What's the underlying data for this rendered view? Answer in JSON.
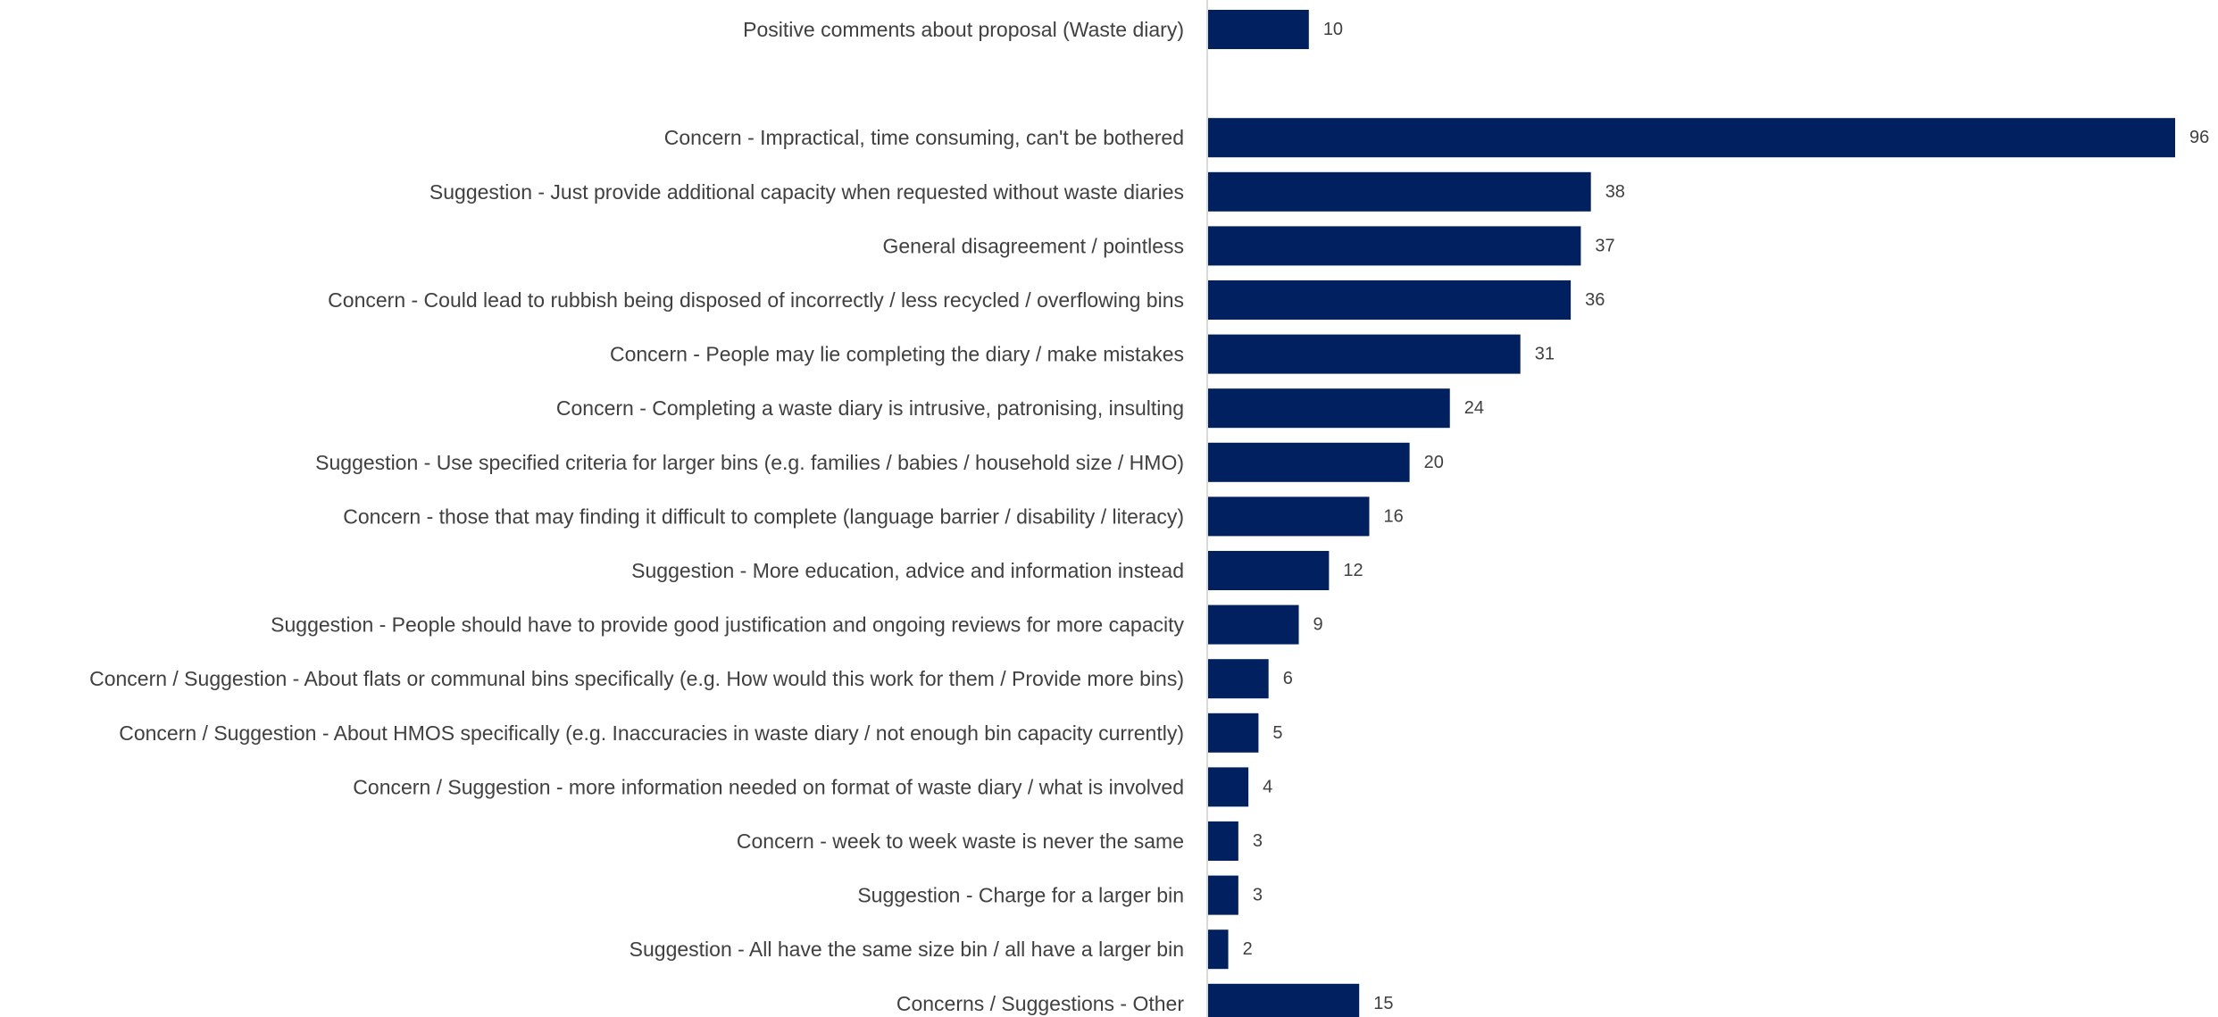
{
  "chart_data": {
    "type": "bar",
    "orientation": "horizontal",
    "categories": [
      "Positive comments about proposal (Waste diary)",
      "",
      "Concern - Impractical, time consuming, can't be bothered",
      "Suggestion - Just provide additional capacity when requested without waste diaries",
      "General disagreement / pointless",
      "Concern - Could lead to rubbish being disposed of incorrectly / less recycled / overflowing bins",
      "Concern - People may lie completing the diary / make mistakes",
      "Concern - Completing a waste diary is intrusive, patronising, insulting",
      "Suggestion - Use specified criteria for larger bins (e.g. families / babies / household size / HMO)",
      "Concern - those that may finding it difficult to complete (language barrier / disability / literacy)",
      "Suggestion - More education, advice and information instead",
      "Suggestion - People should have to provide good justification and ongoing reviews for more capacity",
      "Concern / Suggestion - About flats or communal bins specifically (e.g. How would this work for them / Provide more bins)",
      "Concern / Suggestion - About HMOS specifically (e.g. Inaccuracies in waste diary / not enough bin capacity currently)",
      "Concern / Suggestion - more information needed on format of waste diary / what is involved",
      "Concern - week to week waste is never the same",
      "Suggestion - Charge for a larger bin",
      "Suggestion - All have the same size bin / all have a larger bin",
      "Concerns / Suggestions - Other"
    ],
    "values": [
      10,
      null,
      96,
      38,
      37,
      36,
      31,
      24,
      20,
      16,
      12,
      9,
      6,
      5,
      4,
      3,
      3,
      2,
      15
    ],
    "xlim": [
      0,
      96
    ],
    "title": "",
    "xlabel": "",
    "ylabel": "",
    "grid": false,
    "legend": "none",
    "bar_color": "#002060",
    "axis_color": "#d9d9d9",
    "label_color": "#404040"
  }
}
